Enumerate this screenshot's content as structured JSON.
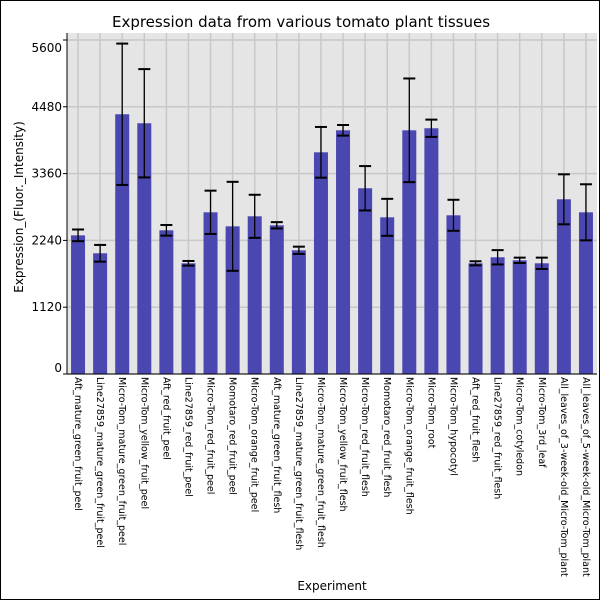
{
  "chart_data": {
    "type": "bar",
    "title": "Expression data from various tomato plant tissues",
    "xlabel": "Experiment",
    "ylabel": "Expression_(Fluor._Intensity)",
    "ylim": [
      0,
      5600
    ],
    "yticks": [
      0,
      1120,
      2240,
      3360,
      4480,
      5600
    ],
    "grid": true,
    "bar_color": "#4b47b0",
    "categories": [
      "Aft_mature_green_fruit_peel",
      "Line27859_mature_green_fruit_peel",
      "Micro-Tom_mature_green_fruit_peel",
      "Micro-Tom_yellow_fruit_peel",
      "Aft_red_fruit_peel",
      "Line27859_red_fruit_peel",
      "Micro-Tom_red_fruit_peel",
      "Momotaro_red_fruit_peel",
      "Micro-Tom_orange_fruit_peel",
      "Aft_mature_green_fruit_flesh",
      "Line27859_mature_green_fruit_flesh",
      "Micro-Tom_mature_green_fruit_flesh",
      "Micro-Tom_yellow_fruit_flesh",
      "Micro-Tom_red_fruit_flesh",
      "Momotaro_red_fruit_flesh",
      "Micro-Tom_orange_fruit_flesh",
      "Micro-Tom_root",
      "Micro-Tom_hypocotyl",
      "Aft_red_fruit_flesh",
      "Line27859_red_fruit_flesh",
      "Micro-Tom_cotyledon",
      "Micro-Tom_3rd_leaf",
      "All_leaves_of_3-week-old_Micro-Tom_plant",
      "All_leaves_of_5-week-old_Micro-Tom_plant"
    ],
    "values": [
      2325,
      2024,
      4355,
      4204,
      2409,
      1856,
      2711,
      2476,
      2644,
      2493,
      2074,
      3717,
      4086,
      3114,
      2627,
      4086,
      4120,
      2661,
      1856,
      1957,
      1906,
      1856,
      2929,
      2711
    ],
    "errors": [
      98,
      140,
      1185,
      908,
      89,
      39,
      363,
      746,
      361,
      53,
      61,
      425,
      89,
      372,
      310,
      869,
      145,
      260,
      34,
      120,
      45,
      95,
      419,
      470
    ]
  }
}
